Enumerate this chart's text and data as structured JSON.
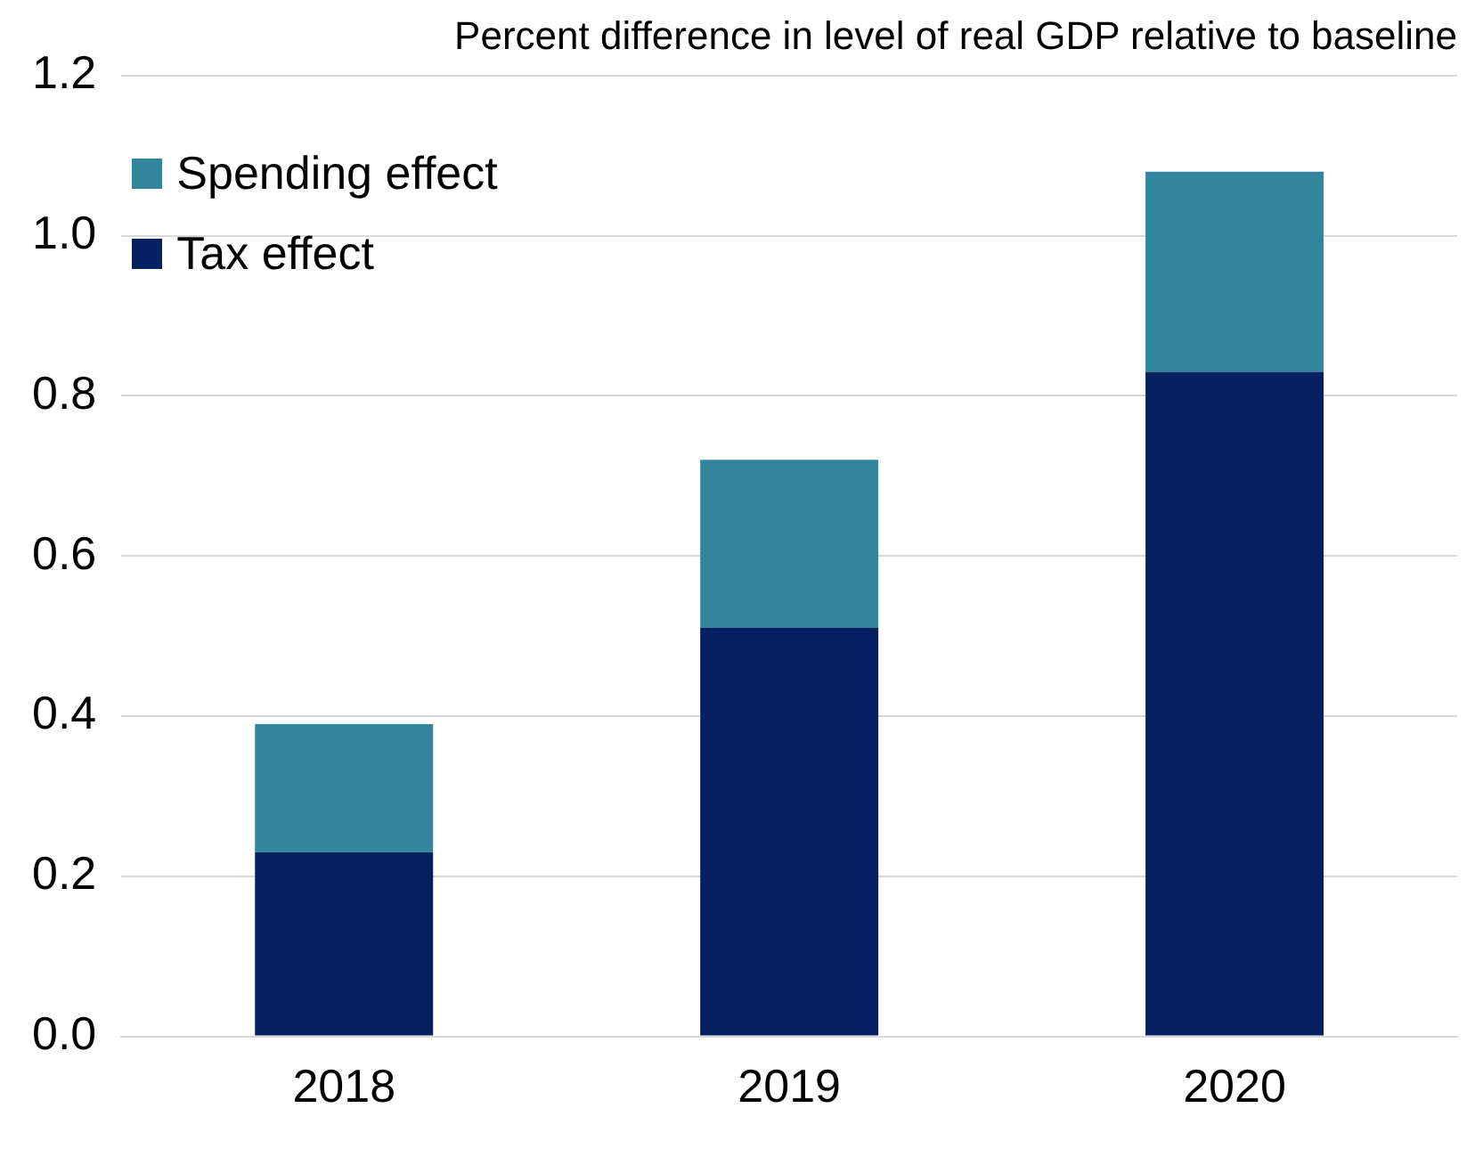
{
  "chart_data": {
    "type": "bar",
    "title": "Percent difference in level of real GDP relative to baseline",
    "categories": [
      "2018",
      "2019",
      "2020"
    ],
    "stacked": true,
    "series": [
      {
        "name": "Tax effect",
        "color": "#042060",
        "values": [
          0.23,
          0.51,
          0.83
        ]
      },
      {
        "name": "Spending effect",
        "color": "#31869e",
        "values": [
          0.16,
          0.21,
          0.25
        ]
      }
    ],
    "ylim": [
      0,
      1.2
    ],
    "yticks": [
      {
        "value": 0,
        "label": "0.0"
      },
      {
        "value": 0.2,
        "label": "0.2"
      },
      {
        "value": 0.4,
        "label": "0.4"
      },
      {
        "value": 0.6,
        "label": "0.6"
      },
      {
        "value": 0.8,
        "label": "0.8"
      },
      {
        "value": 1,
        "label": "1.0"
      },
      {
        "value": 1.2,
        "label": "1.2"
      }
    ],
    "grid": "y",
    "legend": "top left"
  }
}
